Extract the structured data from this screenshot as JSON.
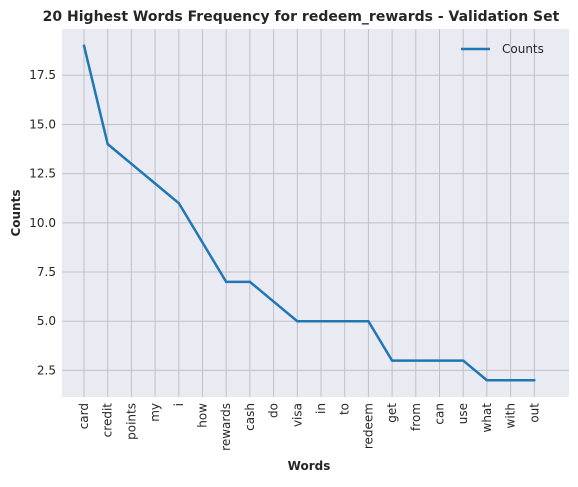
{
  "chart_data": {
    "type": "line",
    "title": "20 Highest Words Frequency for redeem_rewards - Validation Set",
    "xlabel": "Words",
    "ylabel": "Counts",
    "categories": [
      "card",
      "credit",
      "points",
      "my",
      "i",
      "how",
      "rewards",
      "cash",
      "do",
      "visa",
      "in",
      "to",
      "redeem",
      "get",
      "from",
      "can",
      "use",
      "what",
      "with",
      "out"
    ],
    "series": [
      {
        "name": "Counts",
        "color": "#1f77b4",
        "values": [
          19,
          14,
          13,
          12,
          11,
          9,
          7,
          7,
          6,
          5,
          5,
          5,
          5,
          3,
          3,
          3,
          3,
          2,
          2,
          2
        ]
      }
    ],
    "ylim": [
      1.15,
      19.85
    ],
    "yticks": [
      2.5,
      5.0,
      7.5,
      10.0,
      12.5,
      15.0,
      17.5
    ],
    "ytick_labels": [
      "2.5",
      "5.0",
      "7.5",
      "10.0",
      "12.5",
      "15.0",
      "17.5"
    ],
    "grid": true,
    "legend_position": "top-right",
    "background_color": "#eaeaf2",
    "grid_color": "#c0c0c8"
  }
}
